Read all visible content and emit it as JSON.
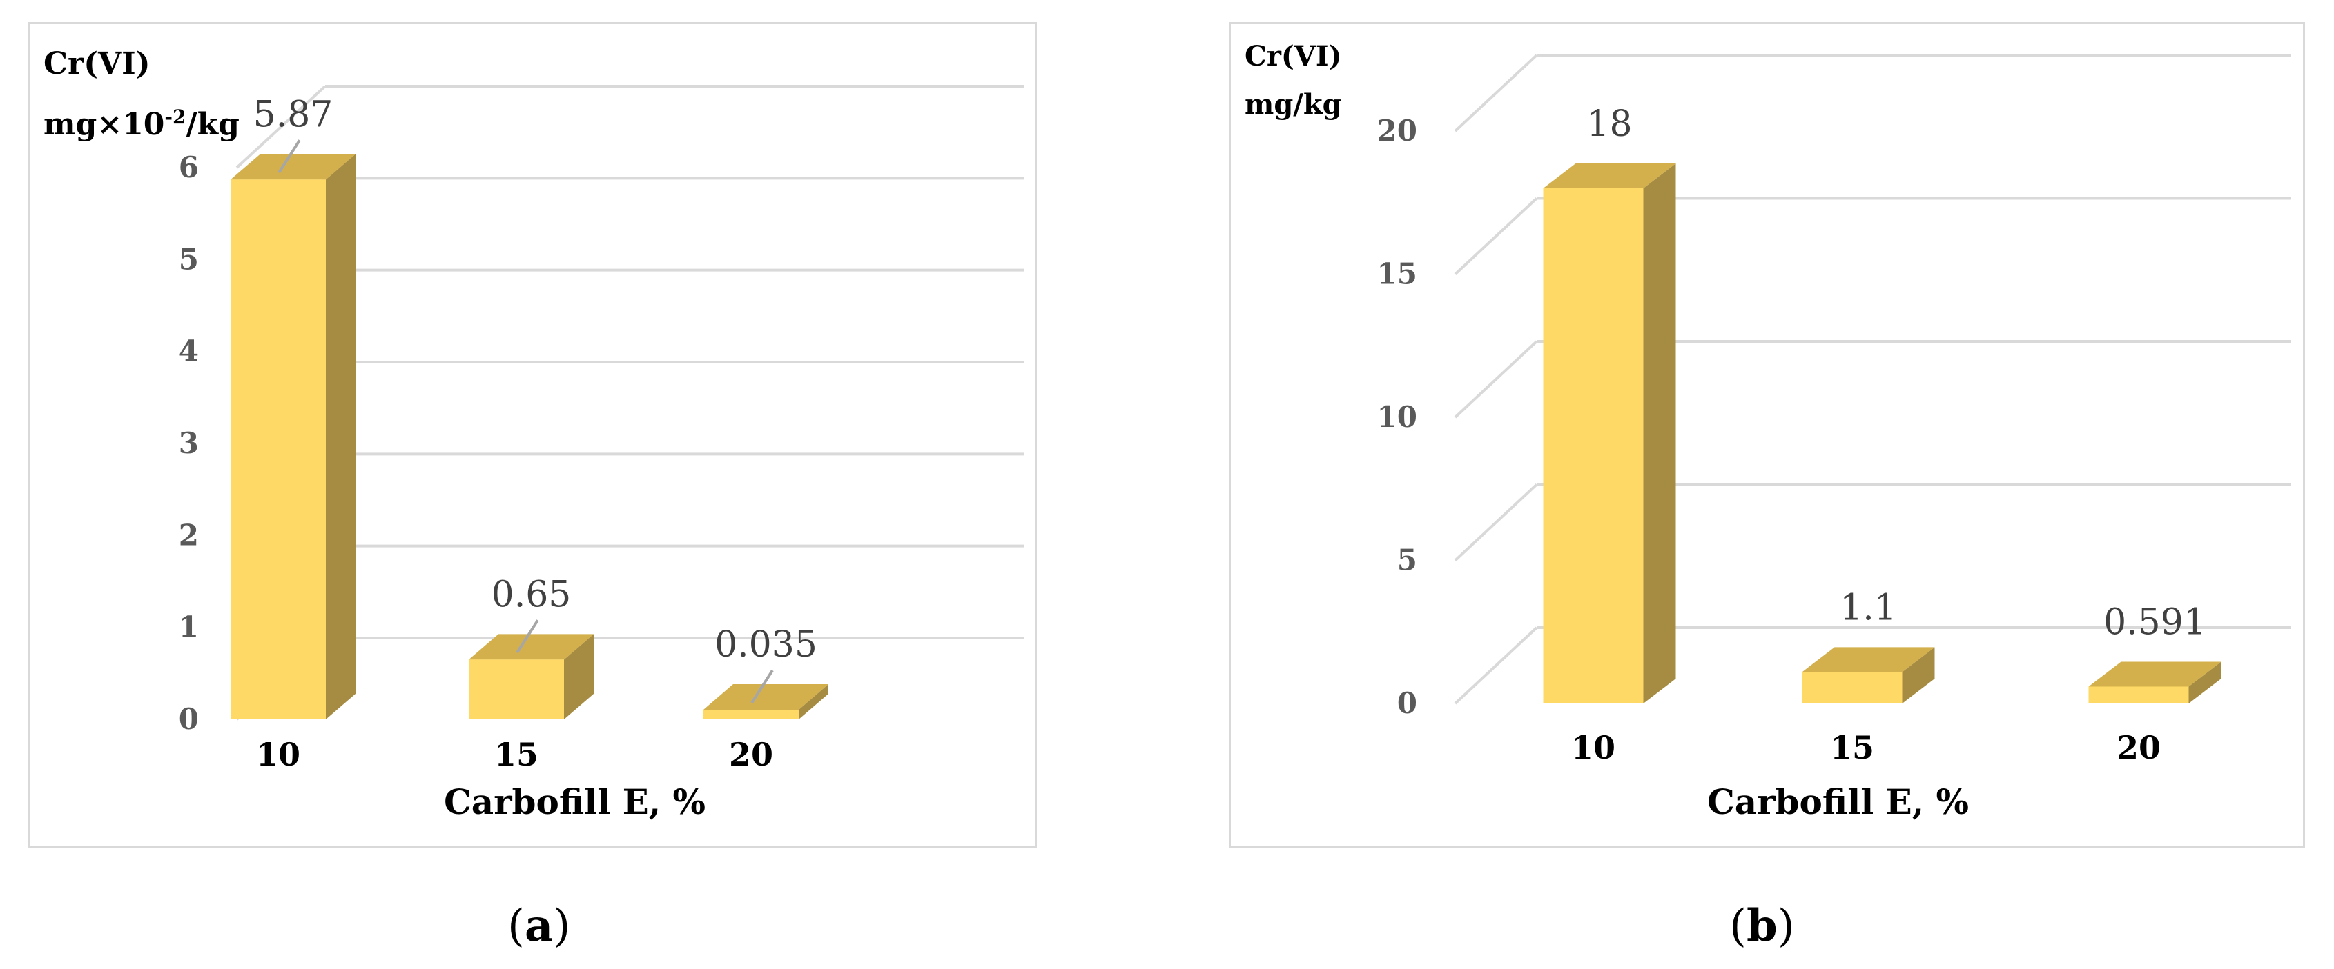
{
  "chart_data": [
    {
      "type": "bar",
      "panel": "a",
      "categories": [
        "10",
        "15",
        "20"
      ],
      "values": [
        5.87,
        0.65,
        0.035
      ],
      "data_labels": [
        "5.87",
        "0.65",
        "0.035"
      ],
      "yticks": [
        "0",
        "1",
        "2",
        "3",
        "4",
        "5",
        "6"
      ],
      "ylim": [
        0,
        6
      ],
      "ylabel_line1": "Cr(VI)",
      "ylabel_line2": "mg×10",
      "ylabel_sup": "-2",
      "ylabel_line2_end": "/kg",
      "xlabel": "Carbofill E, %",
      "grid": true,
      "bar_color": "#FFD966",
      "bar_side_color": "#A68C42",
      "bar_top_color": "#D4B04C"
    },
    {
      "type": "bar",
      "panel": "b",
      "categories": [
        "10",
        "15",
        "20"
      ],
      "values": [
        18,
        1.1,
        0.591
      ],
      "data_labels": [
        "18",
        "1.1",
        "0.591"
      ],
      "yticks": [
        "0",
        "5",
        "10",
        "15",
        "20"
      ],
      "ylim": [
        0,
        20
      ],
      "ylabel_line1": "Cr(VI)",
      "ylabel_line2": "mg/kg",
      "xlabel": "Carbofill E, %",
      "grid": true,
      "bar_color": "#FFD966",
      "bar_side_color": "#A68C42",
      "bar_top_color": "#D4B04C"
    }
  ],
  "subfigure_labels": {
    "a_open": "(",
    "a_letter": "a",
    "a_close": ")",
    "b_open": "(",
    "b_letter": "b",
    "b_close": ")"
  }
}
